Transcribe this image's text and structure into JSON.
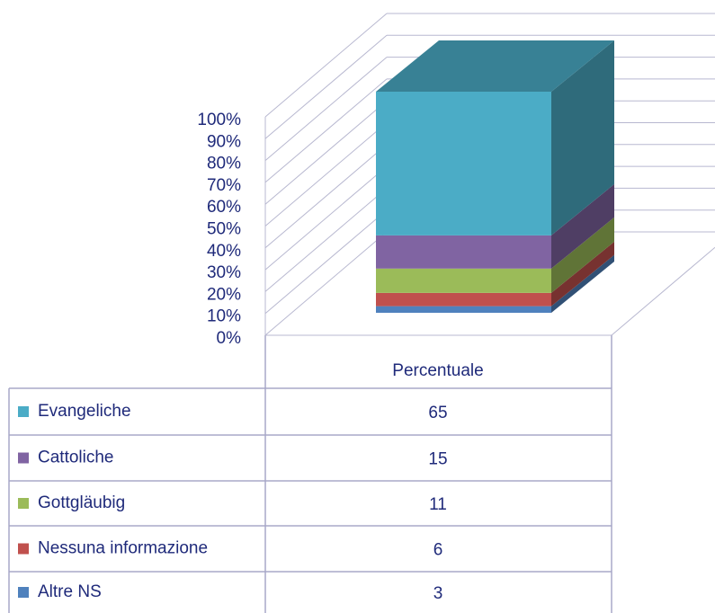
{
  "chart_data": {
    "type": "bar3d_stacked",
    "categories": [
      "Percentuale"
    ],
    "series": [
      {
        "name": "Evangeliche",
        "color": "#4bacc6",
        "values": [
          65
        ]
      },
      {
        "name": "Cattoliche",
        "color": "#8064a2",
        "values": [
          15
        ]
      },
      {
        "name": "Gottgläubig",
        "color": "#9bbb59",
        "values": [
          11
        ]
      },
      {
        "name": "Nessuna informazione",
        "color": "#c0504d",
        "values": [
          6
        ]
      },
      {
        "name": "Altre NS",
        "color": "#4f81bd",
        "values": [
          3
        ]
      }
    ],
    "ylim": [
      0,
      100
    ],
    "yticks": [
      {
        "value": 0,
        "label": "0%"
      },
      {
        "value": 10,
        "label": "10%"
      },
      {
        "value": 20,
        "label": "20%"
      },
      {
        "value": 30,
        "label": "30%"
      },
      {
        "value": 40,
        "label": "40%"
      },
      {
        "value": 50,
        "label": "50%"
      },
      {
        "value": 60,
        "label": "60%"
      },
      {
        "value": 70,
        "label": "70%"
      },
      {
        "value": 80,
        "label": "80%"
      },
      {
        "value": 90,
        "label": "90%"
      },
      {
        "value": 100,
        "label": "100%"
      }
    ],
    "grid": true
  }
}
